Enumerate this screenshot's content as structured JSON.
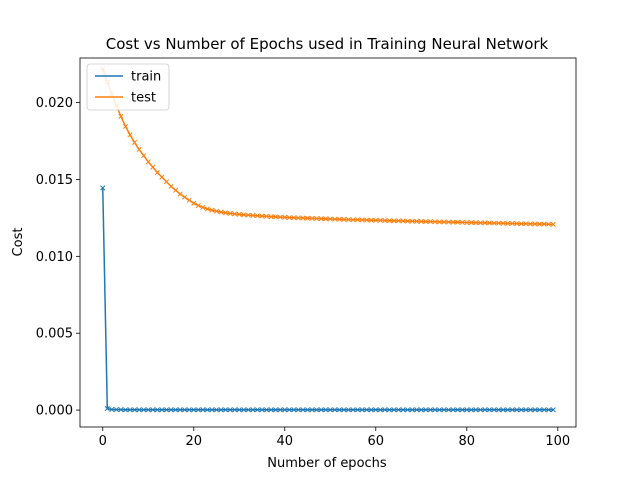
{
  "chart_data": {
    "type": "line",
    "title": "Cost vs Number of Epochs used in Training Neural Network",
    "xlabel": "Number of epochs",
    "ylabel": "Cost",
    "xlim": [
      -5,
      104
    ],
    "ylim": [
      -0.0011,
      0.0229
    ],
    "xticks": [
      0,
      20,
      40,
      60,
      80,
      100
    ],
    "xtick_labels": [
      "0",
      "20",
      "40",
      "60",
      "80",
      "100"
    ],
    "yticks": [
      0.0,
      0.005,
      0.01,
      0.015,
      0.02
    ],
    "ytick_labels": [
      "0.000",
      "0.005",
      "0.010",
      "0.015",
      "0.020"
    ],
    "grid": false,
    "legend_position": "top-left",
    "marker": "x",
    "series": [
      {
        "name": "train",
        "color": "#1f77b4",
        "x": [
          0,
          1,
          2,
          3,
          4,
          5,
          6,
          7,
          8,
          9,
          10,
          11,
          12,
          13,
          14,
          15,
          16,
          17,
          18,
          19,
          20,
          21,
          22,
          23,
          24,
          25,
          26,
          27,
          28,
          29,
          30,
          31,
          32,
          33,
          34,
          35,
          36,
          37,
          38,
          39,
          40,
          41,
          42,
          43,
          44,
          45,
          46,
          47,
          48,
          49,
          50,
          51,
          52,
          53,
          54,
          55,
          56,
          57,
          58,
          59,
          60,
          61,
          62,
          63,
          64,
          65,
          66,
          67,
          68,
          69,
          70,
          71,
          72,
          73,
          74,
          75,
          76,
          77,
          78,
          79,
          80,
          81,
          82,
          83,
          84,
          85,
          86,
          87,
          88,
          89,
          90,
          91,
          92,
          93,
          94,
          95,
          96,
          97,
          98,
          99
        ],
        "y": [
          0.01445,
          0.0001,
          4e-05,
          3e-05,
          3e-05,
          2e-05,
          2e-05,
          2e-05,
          2e-05,
          2e-05,
          2e-05,
          2e-05,
          2e-05,
          2e-05,
          2e-05,
          2e-05,
          2e-05,
          2e-05,
          2e-05,
          2e-05,
          2e-05,
          2e-05,
          2e-05,
          2e-05,
          2e-05,
          2e-05,
          2e-05,
          2e-05,
          2e-05,
          2e-05,
          2e-05,
          2e-05,
          2e-05,
          2e-05,
          2e-05,
          2e-05,
          2e-05,
          2e-05,
          2e-05,
          2e-05,
          2e-05,
          2e-05,
          2e-05,
          2e-05,
          2e-05,
          2e-05,
          2e-05,
          2e-05,
          2e-05,
          2e-05,
          2e-05,
          2e-05,
          2e-05,
          2e-05,
          2e-05,
          2e-05,
          2e-05,
          2e-05,
          2e-05,
          2e-05,
          2e-05,
          2e-05,
          2e-05,
          2e-05,
          2e-05,
          2e-05,
          2e-05,
          2e-05,
          2e-05,
          2e-05,
          2e-05,
          2e-05,
          2e-05,
          2e-05,
          2e-05,
          2e-05,
          2e-05,
          2e-05,
          2e-05,
          2e-05,
          2e-05,
          2e-05,
          2e-05,
          2e-05,
          2e-05,
          2e-05,
          2e-05,
          2e-05,
          2e-05,
          2e-05,
          2e-05,
          2e-05,
          2e-05,
          2e-05,
          2e-05,
          2e-05,
          2e-05,
          2e-05,
          2e-05,
          2e-05
        ]
      },
      {
        "name": "test",
        "color": "#ff7f0e",
        "x": [
          0,
          1,
          2,
          3,
          4,
          5,
          6,
          7,
          8,
          9,
          10,
          11,
          12,
          13,
          14,
          15,
          16,
          17,
          18,
          19,
          20,
          21,
          22,
          23,
          24,
          25,
          26,
          27,
          28,
          29,
          30,
          31,
          32,
          33,
          34,
          35,
          36,
          37,
          38,
          39,
          40,
          41,
          42,
          43,
          44,
          45,
          46,
          47,
          48,
          49,
          50,
          51,
          52,
          53,
          54,
          55,
          56,
          57,
          58,
          59,
          60,
          61,
          62,
          63,
          64,
          65,
          66,
          67,
          68,
          69,
          70,
          71,
          72,
          73,
          74,
          75,
          76,
          77,
          78,
          79,
          80,
          81,
          82,
          83,
          84,
          85,
          86,
          87,
          88,
          89,
          90,
          91,
          92,
          93,
          94,
          95,
          96,
          97,
          98,
          99
        ],
        "y": [
          0.0222,
          0.02135,
          0.02055,
          0.0198,
          0.0191,
          0.01845,
          0.0179,
          0.0174,
          0.01695,
          0.01655,
          0.01615,
          0.0158,
          0.01545,
          0.01515,
          0.01485,
          0.01455,
          0.0143,
          0.01405,
          0.01385,
          0.01365,
          0.01345,
          0.0133,
          0.01318,
          0.01308,
          0.013,
          0.01294,
          0.01288,
          0.01283,
          0.01279,
          0.01276,
          0.01273,
          0.0127,
          0.01268,
          0.01266,
          0.01264,
          0.01262,
          0.0126,
          0.01258,
          0.01257,
          0.01255,
          0.01254,
          0.01252,
          0.01251,
          0.0125,
          0.01249,
          0.01248,
          0.01247,
          0.01246,
          0.01245,
          0.01244,
          0.01243,
          0.01242,
          0.01241,
          0.0124,
          0.01239,
          0.01238,
          0.01238,
          0.01237,
          0.01236,
          0.01235,
          0.01234,
          0.01234,
          0.01233,
          0.01232,
          0.01231,
          0.01231,
          0.0123,
          0.01229,
          0.01228,
          0.01228,
          0.01227,
          0.01226,
          0.01226,
          0.01225,
          0.01224,
          0.01224,
          0.01223,
          0.01222,
          0.01222,
          0.01221,
          0.0122,
          0.0122,
          0.01219,
          0.01218,
          0.01218,
          0.01217,
          0.01216,
          0.01216,
          0.01215,
          0.01214,
          0.01214,
          0.01213,
          0.01212,
          0.01212,
          0.01211,
          0.01211,
          0.0121,
          0.0121,
          0.01209,
          0.01208
        ]
      }
    ]
  }
}
